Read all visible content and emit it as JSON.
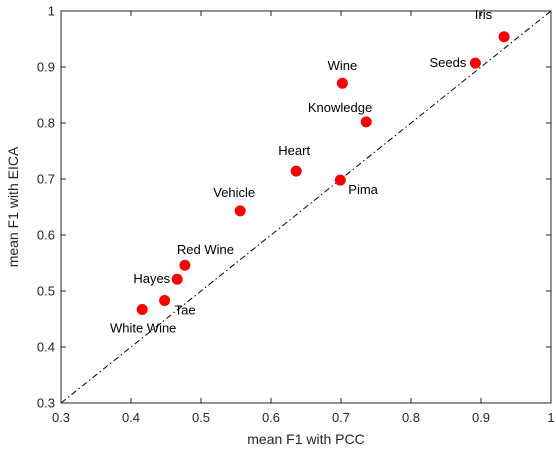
{
  "chart_data": {
    "type": "scatter",
    "xlabel": "mean F1 with PCC",
    "ylabel": "mean F1 with EICA",
    "xlim": [
      0.3,
      1
    ],
    "ylim": [
      0.3,
      1
    ],
    "xticks": [
      "0.3",
      "0.4",
      "0.5",
      "0.6",
      "0.7",
      "0.8",
      "0.9",
      "1"
    ],
    "yticks": [
      "0.3",
      "0.4",
      "0.5",
      "0.6",
      "0.7",
      "0.8",
      "0.9",
      "1"
    ],
    "grid": false,
    "reference_line": {
      "style": "dash-dot",
      "from": [
        0.3,
        0.3
      ],
      "to": [
        1,
        1
      ]
    },
    "marker_color": "#ff0000",
    "points": [
      {
        "label": "Iris",
        "x": 0.933,
        "y": 0.954
      },
      {
        "label": "Seeds",
        "x": 0.892,
        "y": 0.907
      },
      {
        "label": "Wine",
        "x": 0.702,
        "y": 0.871
      },
      {
        "label": "Knowledge",
        "x": 0.736,
        "y": 0.802
      },
      {
        "label": "Heart",
        "x": 0.636,
        "y": 0.714
      },
      {
        "label": "Pima",
        "x": 0.699,
        "y": 0.698
      },
      {
        "label": "Vehicle",
        "x": 0.556,
        "y": 0.643
      },
      {
        "label": "Red Wine",
        "x": 0.477,
        "y": 0.546
      },
      {
        "label": "Hayes",
        "x": 0.466,
        "y": 0.521
      },
      {
        "label": "Tae",
        "x": 0.448,
        "y": 0.483
      },
      {
        "label": "White Wine",
        "x": 0.416,
        "y": 0.467
      }
    ]
  }
}
